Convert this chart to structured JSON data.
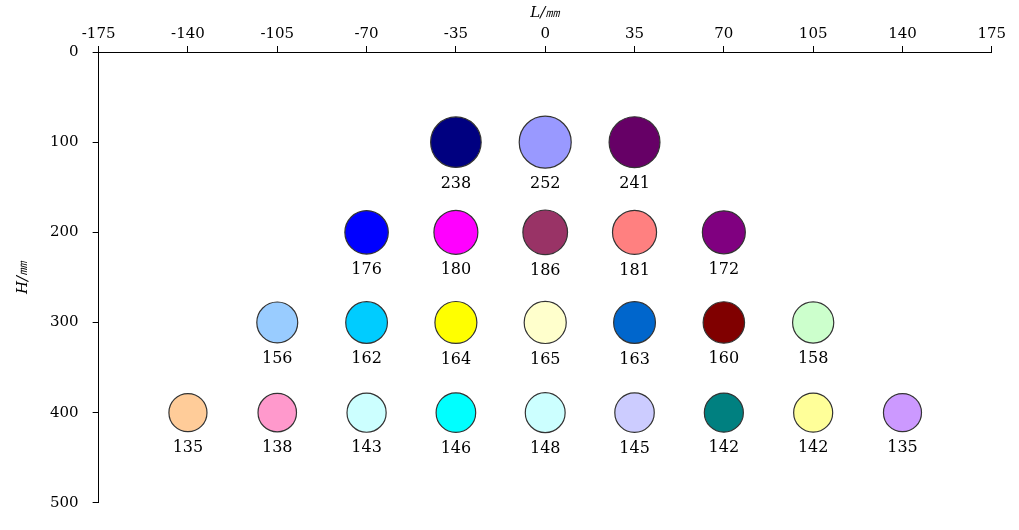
{
  "chart_data": {
    "type": "bubble",
    "xlabel": "L/㎜",
    "ylabel": "H/㎜",
    "x": [
      -35,
      0,
      35,
      -70,
      -35,
      0,
      35,
      70,
      -105,
      -70,
      -35,
      0,
      35,
      70,
      105,
      -140,
      -105,
      -70,
      -35,
      0,
      35,
      70,
      105,
      140
    ],
    "values": [
      100,
      100,
      100,
      200,
      200,
      200,
      200,
      200,
      300,
      300,
      300,
      300,
      300,
      300,
      300,
      400,
      400,
      400,
      400,
      400,
      400,
      400,
      400,
      400
    ],
    "sizes": [
      238,
      252,
      241,
      176,
      180,
      186,
      181,
      172,
      156,
      162,
      164,
      165,
      163,
      160,
      158,
      135,
      138,
      143,
      146,
      148,
      145,
      142,
      142,
      135
    ],
    "value_labels": [
      "238",
      "252",
      "241",
      "176",
      "180",
      "186",
      "181",
      "172",
      "156",
      "162",
      "164",
      "165",
      "163",
      "160",
      "158",
      "135",
      "138",
      "143",
      "146",
      "148",
      "145",
      "142",
      "142",
      "135"
    ],
    "colors": [
      "#000080",
      "#9999ff",
      "#660066",
      "#0000ff",
      "#ff00ff",
      "#993366",
      "#ff8080",
      "#800080",
      "#99ccff",
      "#00ccff",
      "#ffff00",
      "#ffffcc",
      "#0066cc",
      "#800000",
      "#ccffcc",
      "#ffcc99",
      "#ff99cc",
      "#ccffff",
      "#00ffff",
      "#ccffff",
      "#ccccff",
      "#008080",
      "#ffff99",
      "#cc99ff"
    ],
    "xlim": [
      -175,
      175
    ],
    "xticks": [
      -175,
      -140,
      -105,
      -70,
      -35,
      0,
      35,
      70,
      105,
      140,
      175
    ],
    "ylim": [
      500,
      0
    ],
    "yticks": [
      0,
      100,
      200,
      300,
      400,
      500
    ],
    "grid": false,
    "legend": false
  }
}
